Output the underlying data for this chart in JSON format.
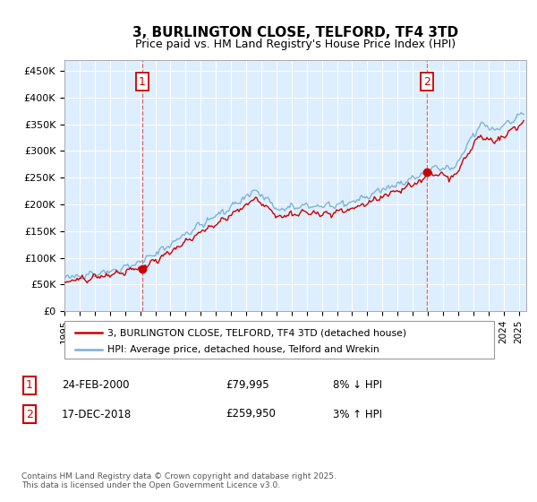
{
  "title": "3, BURLINGTON CLOSE, TELFORD, TF4 3TD",
  "subtitle": "Price paid vs. HM Land Registry's House Price Index (HPI)",
  "legend_label1": "3, BURLINGTON CLOSE, TELFORD, TF4 3TD (detached house)",
  "legend_label2": "HPI: Average price, detached house, Telford and Wrekin",
  "annotation1": {
    "num": "1",
    "date": "24-FEB-2000",
    "price": "£79,995",
    "pct": "8% ↓ HPI"
  },
  "annotation2": {
    "num": "2",
    "date": "17-DEC-2018",
    "price": "£259,950",
    "pct": "3% ↑ HPI"
  },
  "footnote": "Contains HM Land Registry data © Crown copyright and database right 2025.\nThis data is licensed under the Open Government Licence v3.0.",
  "sale1_x": 2000.14,
  "sale1_y": 79995,
  "sale2_x": 2018.96,
  "sale2_y": 259950,
  "vline1_x": 2000.14,
  "vline2_x": 2018.96,
  "color_red": "#cc0000",
  "color_blue": "#7ab0d4",
  "color_vline": "#dd4444",
  "ylim_min": 0,
  "ylim_max": 470000,
  "yticks": [
    0,
    50000,
    100000,
    150000,
    200000,
    250000,
    300000,
    350000,
    400000,
    450000
  ],
  "ytick_labels": [
    "£0",
    "£50K",
    "£100K",
    "£150K",
    "£200K",
    "£250K",
    "£300K",
    "£350K",
    "£400K",
    "£450K"
  ],
  "xlim_min": 1995,
  "xlim_max": 2025.5,
  "bg_color": "#ddeeff"
}
